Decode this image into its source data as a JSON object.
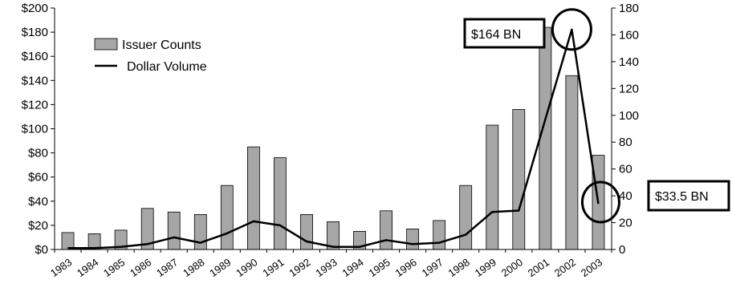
{
  "chart_data": {
    "type": "bar",
    "categories": [
      "1983",
      "1984",
      "1985",
      "1986",
      "1987",
      "1988",
      "1989",
      "1990",
      "1991",
      "1992",
      "1993",
      "1994",
      "1995",
      "1996",
      "1997",
      "1998",
      "1999",
      "2000",
      "2001",
      "2002",
      "2003"
    ],
    "series": [
      {
        "name": "Issuer Counts",
        "type": "bar",
        "axis": "left",
        "color": "#a6a6a6",
        "values": [
          14,
          13,
          16,
          34,
          31,
          29,
          53,
          85,
          76,
          29,
          23,
          15,
          32,
          17,
          24,
          53,
          103,
          116,
          184,
          144,
          78
        ]
      },
      {
        "name": "Dollar Volume",
        "type": "line",
        "axis": "right",
        "color": "#000000",
        "values": [
          1,
          1,
          2,
          4,
          9,
          5,
          12,
          21,
          18,
          6,
          2,
          2,
          7,
          4,
          5,
          11,
          28,
          29,
          97,
          164,
          34
        ]
      }
    ],
    "y_left": {
      "min": 0,
      "max": 200,
      "step": 20,
      "prefix": "$",
      "ticks": [
        "$0",
        "$20",
        "$40",
        "$60",
        "$80",
        "$100",
        "$120",
        "$140",
        "$160",
        "$180",
        "$200"
      ]
    },
    "y_right": {
      "min": 0,
      "max": 180,
      "step": 20,
      "ticks": [
        "0",
        "20",
        "40",
        "60",
        "80",
        "100",
        "120",
        "140",
        "160",
        "180"
      ]
    },
    "legend": {
      "placement": "top-left",
      "items": [
        "Issuer Counts",
        "Dollar Volume"
      ]
    },
    "annotations": [
      {
        "label": "$164 BN",
        "category": "2002",
        "value": 164
      },
      {
        "label": "$33.5 BN",
        "category": "2003",
        "value": 33.5
      }
    ],
    "grid": false
  }
}
